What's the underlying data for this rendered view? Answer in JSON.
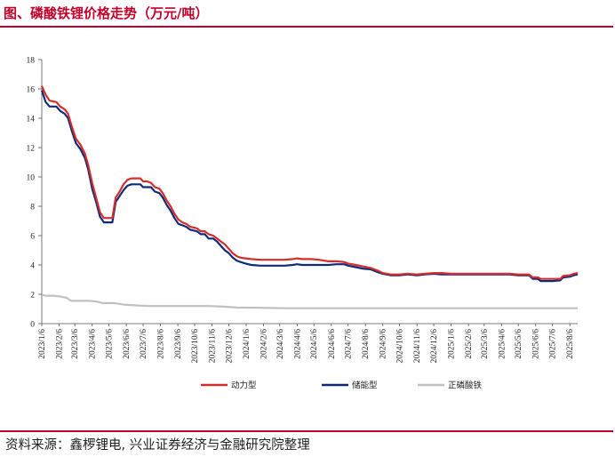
{
  "header": {
    "title": "图、磷酸铁锂价格走势（万元/吨）"
  },
  "footer": {
    "source": "资料来源：鑫椤锂电, 兴业证券经济与金融研究院整理"
  },
  "colors": {
    "accent": "#c0002a",
    "power": "#d42e2b",
    "storage": "#102a7a",
    "cathode": "#c0c0c0"
  },
  "chart_data": {
    "type": "line",
    "ylim": [
      0,
      18
    ],
    "y_ticks": [
      0,
      2,
      4,
      6,
      8,
      10,
      12,
      14,
      16,
      18
    ],
    "x_range": [
      "2023-01-06",
      "2025-08-20"
    ],
    "x_tick_labels": [
      "2023/1/6",
      "2023/2/6",
      "2023/3/6",
      "2023/4/6",
      "2023/5/6",
      "2023/6/6",
      "2023/7/6",
      "2023/8/6",
      "2023/9/6",
      "2023/10/6",
      "2023/11/6",
      "2023/12/6",
      "2024/1/6",
      "2024/2/6",
      "2024/3/6",
      "2024/4/6",
      "2024/5/6",
      "2024/6/6",
      "2024/7/6",
      "2024/8/6",
      "2024/9/6",
      "2024/10/6",
      "2024/11/6",
      "2024/12/6",
      "2025/1/6",
      "2025/2/6",
      "2025/3/6",
      "2025/4/6",
      "2025/5/6",
      "2025/6/6",
      "2025/7/6",
      "2025/8/6"
    ],
    "series": [
      {
        "name": "动力型",
        "color": "#d42e2b",
        "points": [
          [
            "2023-01-06",
            16.2
          ],
          [
            "2023-01-13",
            15.6
          ],
          [
            "2023-01-20",
            15.2
          ],
          [
            "2023-02-01",
            15.1
          ],
          [
            "2023-02-08",
            14.8
          ],
          [
            "2023-02-16",
            14.6
          ],
          [
            "2023-02-22",
            14.3
          ],
          [
            "2023-03-01",
            13.4
          ],
          [
            "2023-03-08",
            12.6
          ],
          [
            "2023-03-16",
            12.2
          ],
          [
            "2023-03-24",
            11.6
          ],
          [
            "2023-03-30",
            10.8
          ],
          [
            "2023-04-06",
            9.6
          ],
          [
            "2023-04-13",
            8.6
          ],
          [
            "2023-04-20",
            7.6
          ],
          [
            "2023-04-27",
            7.2
          ],
          [
            "2023-05-04",
            7.2
          ],
          [
            "2023-05-12",
            7.2
          ],
          [
            "2023-05-18",
            8.6
          ],
          [
            "2023-05-25",
            9.0
          ],
          [
            "2023-06-01",
            9.5
          ],
          [
            "2023-06-08",
            9.8
          ],
          [
            "2023-06-15",
            9.9
          ],
          [
            "2023-06-22",
            9.9
          ],
          [
            "2023-07-01",
            9.9
          ],
          [
            "2023-07-06",
            9.7
          ],
          [
            "2023-07-13",
            9.7
          ],
          [
            "2023-07-20",
            9.6
          ],
          [
            "2023-07-27",
            9.3
          ],
          [
            "2023-08-04",
            9.2
          ],
          [
            "2023-08-10",
            8.9
          ],
          [
            "2023-08-17",
            8.4
          ],
          [
            "2023-08-24",
            8.0
          ],
          [
            "2023-08-31",
            7.5
          ],
          [
            "2023-09-07",
            7.1
          ],
          [
            "2023-09-14",
            6.9
          ],
          [
            "2023-09-21",
            6.8
          ],
          [
            "2023-09-28",
            6.6
          ],
          [
            "2023-10-10",
            6.5
          ],
          [
            "2023-10-17",
            6.3
          ],
          [
            "2023-10-24",
            6.3
          ],
          [
            "2023-10-31",
            6.1
          ],
          [
            "2023-11-08",
            6.0
          ],
          [
            "2023-11-15",
            5.8
          ],
          [
            "2023-11-22",
            5.6
          ],
          [
            "2023-11-29",
            5.4
          ],
          [
            "2023-12-06",
            5.1
          ],
          [
            "2023-12-13",
            4.8
          ],
          [
            "2023-12-20",
            4.6
          ],
          [
            "2023-12-27",
            4.5
          ],
          [
            "2024-01-05",
            4.45
          ],
          [
            "2024-01-15",
            4.4
          ],
          [
            "2024-02-01",
            4.35
          ],
          [
            "2024-02-15",
            4.35
          ],
          [
            "2024-03-01",
            4.35
          ],
          [
            "2024-03-15",
            4.35
          ],
          [
            "2024-03-29",
            4.4
          ],
          [
            "2024-04-06",
            4.45
          ],
          [
            "2024-04-15",
            4.4
          ],
          [
            "2024-05-01",
            4.4
          ],
          [
            "2024-05-15",
            4.35
          ],
          [
            "2024-06-01",
            4.25
          ],
          [
            "2024-06-15",
            4.25
          ],
          [
            "2024-06-29",
            4.2
          ],
          [
            "2024-07-06",
            4.1
          ],
          [
            "2024-07-20",
            4.0
          ],
          [
            "2024-08-01",
            3.9
          ],
          [
            "2024-08-15",
            3.8
          ],
          [
            "2024-08-29",
            3.6
          ],
          [
            "2024-09-06",
            3.45
          ],
          [
            "2024-09-20",
            3.35
          ],
          [
            "2024-10-06",
            3.35
          ],
          [
            "2024-10-20",
            3.4
          ],
          [
            "2024-11-06",
            3.35
          ],
          [
            "2024-11-20",
            3.4
          ],
          [
            "2024-12-06",
            3.45
          ],
          [
            "2024-12-20",
            3.45
          ],
          [
            "2025-01-06",
            3.4
          ],
          [
            "2025-02-06",
            3.4
          ],
          [
            "2025-03-06",
            3.4
          ],
          [
            "2025-04-06",
            3.4
          ],
          [
            "2025-04-20",
            3.4
          ],
          [
            "2025-05-06",
            3.35
          ],
          [
            "2025-05-25",
            3.35
          ],
          [
            "2025-06-01",
            3.15
          ],
          [
            "2025-06-10",
            3.15
          ],
          [
            "2025-06-15",
            3.05
          ],
          [
            "2025-07-06",
            3.05
          ],
          [
            "2025-07-20",
            3.05
          ],
          [
            "2025-07-25",
            3.25
          ],
          [
            "2025-08-06",
            3.3
          ],
          [
            "2025-08-13",
            3.4
          ],
          [
            "2025-08-20",
            3.45
          ]
        ]
      },
      {
        "name": "储能型",
        "color": "#102a7a",
        "points": [
          [
            "2023-01-06",
            15.9
          ],
          [
            "2023-01-13",
            15.1
          ],
          [
            "2023-01-20",
            14.8
          ],
          [
            "2023-02-01",
            14.8
          ],
          [
            "2023-02-08",
            14.5
          ],
          [
            "2023-02-16",
            14.3
          ],
          [
            "2023-02-22",
            14.0
          ],
          [
            "2023-03-01",
            13.1
          ],
          [
            "2023-03-08",
            12.3
          ],
          [
            "2023-03-16",
            11.9
          ],
          [
            "2023-03-24",
            11.3
          ],
          [
            "2023-03-30",
            10.5
          ],
          [
            "2023-04-06",
            9.2
          ],
          [
            "2023-04-13",
            8.3
          ],
          [
            "2023-04-20",
            7.3
          ],
          [
            "2023-04-27",
            6.9
          ],
          [
            "2023-05-04",
            6.9
          ],
          [
            "2023-05-12",
            6.9
          ],
          [
            "2023-05-18",
            8.3
          ],
          [
            "2023-05-25",
            8.7
          ],
          [
            "2023-06-01",
            9.1
          ],
          [
            "2023-06-08",
            9.4
          ],
          [
            "2023-06-15",
            9.5
          ],
          [
            "2023-06-22",
            9.5
          ],
          [
            "2023-07-01",
            9.5
          ],
          [
            "2023-07-06",
            9.3
          ],
          [
            "2023-07-13",
            9.3
          ],
          [
            "2023-07-20",
            9.3
          ],
          [
            "2023-07-27",
            9.0
          ],
          [
            "2023-08-04",
            8.9
          ],
          [
            "2023-08-10",
            8.6
          ],
          [
            "2023-08-17",
            8.1
          ],
          [
            "2023-08-24",
            7.7
          ],
          [
            "2023-08-31",
            7.2
          ],
          [
            "2023-09-07",
            6.8
          ],
          [
            "2023-09-14",
            6.7
          ],
          [
            "2023-09-21",
            6.6
          ],
          [
            "2023-09-28",
            6.4
          ],
          [
            "2023-10-10",
            6.3
          ],
          [
            "2023-10-17",
            6.1
          ],
          [
            "2023-10-24",
            6.1
          ],
          [
            "2023-10-31",
            5.8
          ],
          [
            "2023-11-08",
            5.8
          ],
          [
            "2023-11-15",
            5.6
          ],
          [
            "2023-11-22",
            5.3
          ],
          [
            "2023-11-29",
            5.0
          ],
          [
            "2023-12-06",
            4.8
          ],
          [
            "2023-12-13",
            4.5
          ],
          [
            "2023-12-20",
            4.3
          ],
          [
            "2023-12-27",
            4.2
          ],
          [
            "2024-01-05",
            4.1
          ],
          [
            "2024-01-15",
            4.0
          ],
          [
            "2024-02-01",
            3.95
          ],
          [
            "2024-02-15",
            3.95
          ],
          [
            "2024-03-01",
            3.95
          ],
          [
            "2024-03-15",
            3.95
          ],
          [
            "2024-03-29",
            4.0
          ],
          [
            "2024-04-06",
            4.05
          ],
          [
            "2024-04-15",
            4.0
          ],
          [
            "2024-05-01",
            4.0
          ],
          [
            "2024-05-15",
            4.0
          ],
          [
            "2024-06-01",
            4.0
          ],
          [
            "2024-06-15",
            4.05
          ],
          [
            "2024-06-29",
            4.05
          ],
          [
            "2024-07-06",
            3.95
          ],
          [
            "2024-07-20",
            3.85
          ],
          [
            "2024-08-01",
            3.75
          ],
          [
            "2024-08-15",
            3.7
          ],
          [
            "2024-08-29",
            3.5
          ],
          [
            "2024-09-06",
            3.4
          ],
          [
            "2024-09-20",
            3.3
          ],
          [
            "2024-10-06",
            3.3
          ],
          [
            "2024-10-20",
            3.35
          ],
          [
            "2024-11-06",
            3.3
          ],
          [
            "2024-11-20",
            3.35
          ],
          [
            "2024-12-06",
            3.4
          ],
          [
            "2024-12-20",
            3.35
          ],
          [
            "2025-01-06",
            3.35
          ],
          [
            "2025-02-06",
            3.35
          ],
          [
            "2025-03-06",
            3.35
          ],
          [
            "2025-04-06",
            3.35
          ],
          [
            "2025-04-20",
            3.35
          ],
          [
            "2025-05-06",
            3.3
          ],
          [
            "2025-05-25",
            3.3
          ],
          [
            "2025-06-01",
            3.05
          ],
          [
            "2025-06-10",
            3.05
          ],
          [
            "2025-06-15",
            2.9
          ],
          [
            "2025-07-06",
            2.9
          ],
          [
            "2025-07-20",
            2.95
          ],
          [
            "2025-07-25",
            3.15
          ],
          [
            "2025-08-06",
            3.2
          ],
          [
            "2025-08-13",
            3.3
          ],
          [
            "2025-08-20",
            3.35
          ]
        ]
      },
      {
        "name": "正磷酸铁",
        "color": "#c0c0c0",
        "points": [
          [
            "2023-01-06",
            1.95
          ],
          [
            "2023-01-13",
            1.9
          ],
          [
            "2023-01-27",
            1.9
          ],
          [
            "2023-02-08",
            1.85
          ],
          [
            "2023-02-20",
            1.75
          ],
          [
            "2023-02-27",
            1.55
          ],
          [
            "2023-03-15",
            1.55
          ],
          [
            "2023-04-01",
            1.55
          ],
          [
            "2023-04-15",
            1.5
          ],
          [
            "2023-04-25",
            1.4
          ],
          [
            "2023-05-15",
            1.4
          ],
          [
            "2023-06-01",
            1.3
          ],
          [
            "2023-06-20",
            1.25
          ],
          [
            "2023-07-15",
            1.2
          ],
          [
            "2023-09-01",
            1.2
          ],
          [
            "2023-11-01",
            1.2
          ],
          [
            "2023-12-01",
            1.15
          ],
          [
            "2023-12-20",
            1.1
          ],
          [
            "2024-02-01",
            1.08
          ],
          [
            "2024-03-15",
            1.05
          ],
          [
            "2024-05-01",
            1.05
          ],
          [
            "2024-07-01",
            1.05
          ],
          [
            "2024-09-01",
            1.05
          ],
          [
            "2024-11-01",
            1.05
          ],
          [
            "2025-01-01",
            1.05
          ],
          [
            "2025-03-01",
            1.05
          ],
          [
            "2025-05-01",
            1.05
          ],
          [
            "2025-08-20",
            1.05
          ]
        ]
      }
    ],
    "legend": {
      "position": "bottom-center"
    },
    "grid": false
  }
}
